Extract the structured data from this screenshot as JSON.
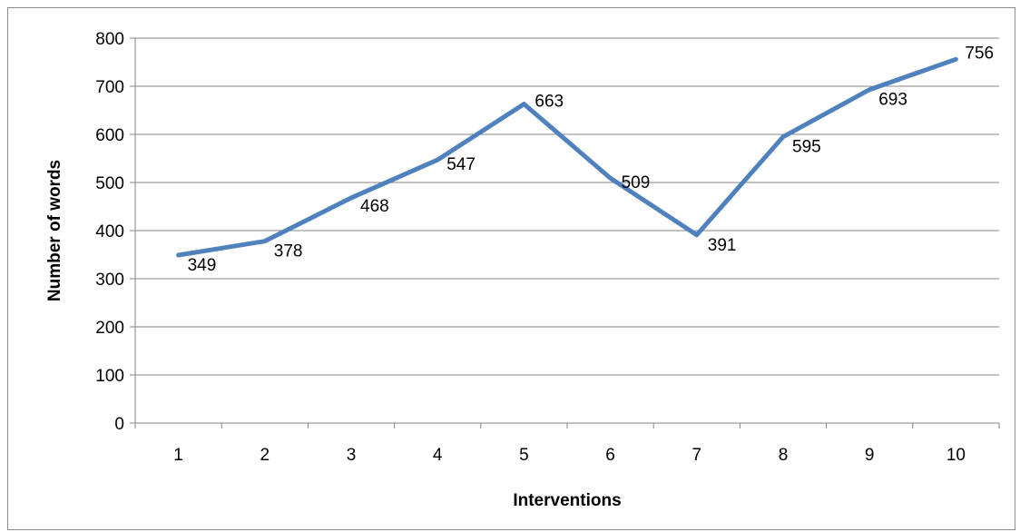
{
  "chart_data": {
    "type": "line",
    "title": "",
    "xlabel": "Interventions",
    "ylabel": "Number of words",
    "categories": [
      "1",
      "2",
      "3",
      "4",
      "5",
      "6",
      "7",
      "8",
      "9",
      "10"
    ],
    "series": [
      {
        "values": [
          349,
          378,
          468,
          547,
          663,
          509,
          391,
          595,
          693,
          756
        ],
        "color": "#4f81bd",
        "data_labels": true
      }
    ],
    "ylim": [
      0,
      800
    ],
    "yticks": [
      0,
      100,
      200,
      300,
      400,
      500,
      600,
      700,
      800
    ],
    "grid": "horizontal",
    "legend": "none"
  }
}
